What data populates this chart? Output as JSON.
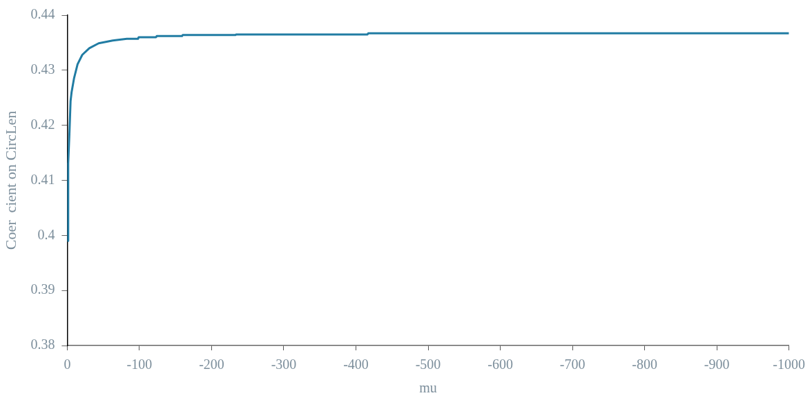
{
  "chart_data": {
    "type": "line",
    "xlabel": "mu",
    "ylabel": "Coer  cient on CircLen",
    "x": [
      0,
      -0.5,
      -1,
      -1.3,
      -3,
      -4.6,
      -6,
      -9.5,
      -14.3,
      -20.8,
      -30.6,
      -43.6,
      -63,
      -82.6,
      -98,
      -99,
      -123,
      -124,
      -159,
      -160,
      -233,
      -234,
      -416,
      -417,
      -1000
    ],
    "series": [
      {
        "color": "#217ca3",
        "values": [
          0.413,
          0.406,
          0.399,
          0.4131,
          0.4185,
          0.4244,
          0.426,
          0.4286,
          0.4311,
          0.4328,
          0.434,
          0.4349,
          0.4354,
          0.4357,
          0.4357,
          0.436,
          0.436,
          0.4362,
          0.4362,
          0.4364,
          0.4364,
          0.4365,
          0.4365,
          0.4367,
          0.4367
        ]
      }
    ],
    "xlim": [
      0,
      -1000
    ],
    "xticks": [
      0,
      -100,
      -200,
      -300,
      -400,
      -500,
      -600,
      -700,
      -800,
      -900,
      -1000
    ],
    "ylim": [
      0.38,
      0.44
    ],
    "yticks": [
      0.38,
      0.39,
      0.4,
      0.41,
      0.42,
      0.43,
      0.44
    ],
    "grid": false,
    "legend": false,
    "marker": "none",
    "line_style": "solid"
  }
}
